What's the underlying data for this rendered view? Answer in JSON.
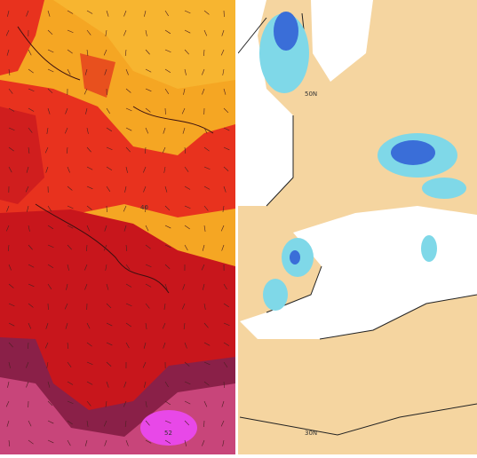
{
  "left_panel": {
    "labels": [
      "40",
      "52"
    ]
  },
  "right_panel": {
    "labels": [
      "50N",
      "30N"
    ]
  }
}
